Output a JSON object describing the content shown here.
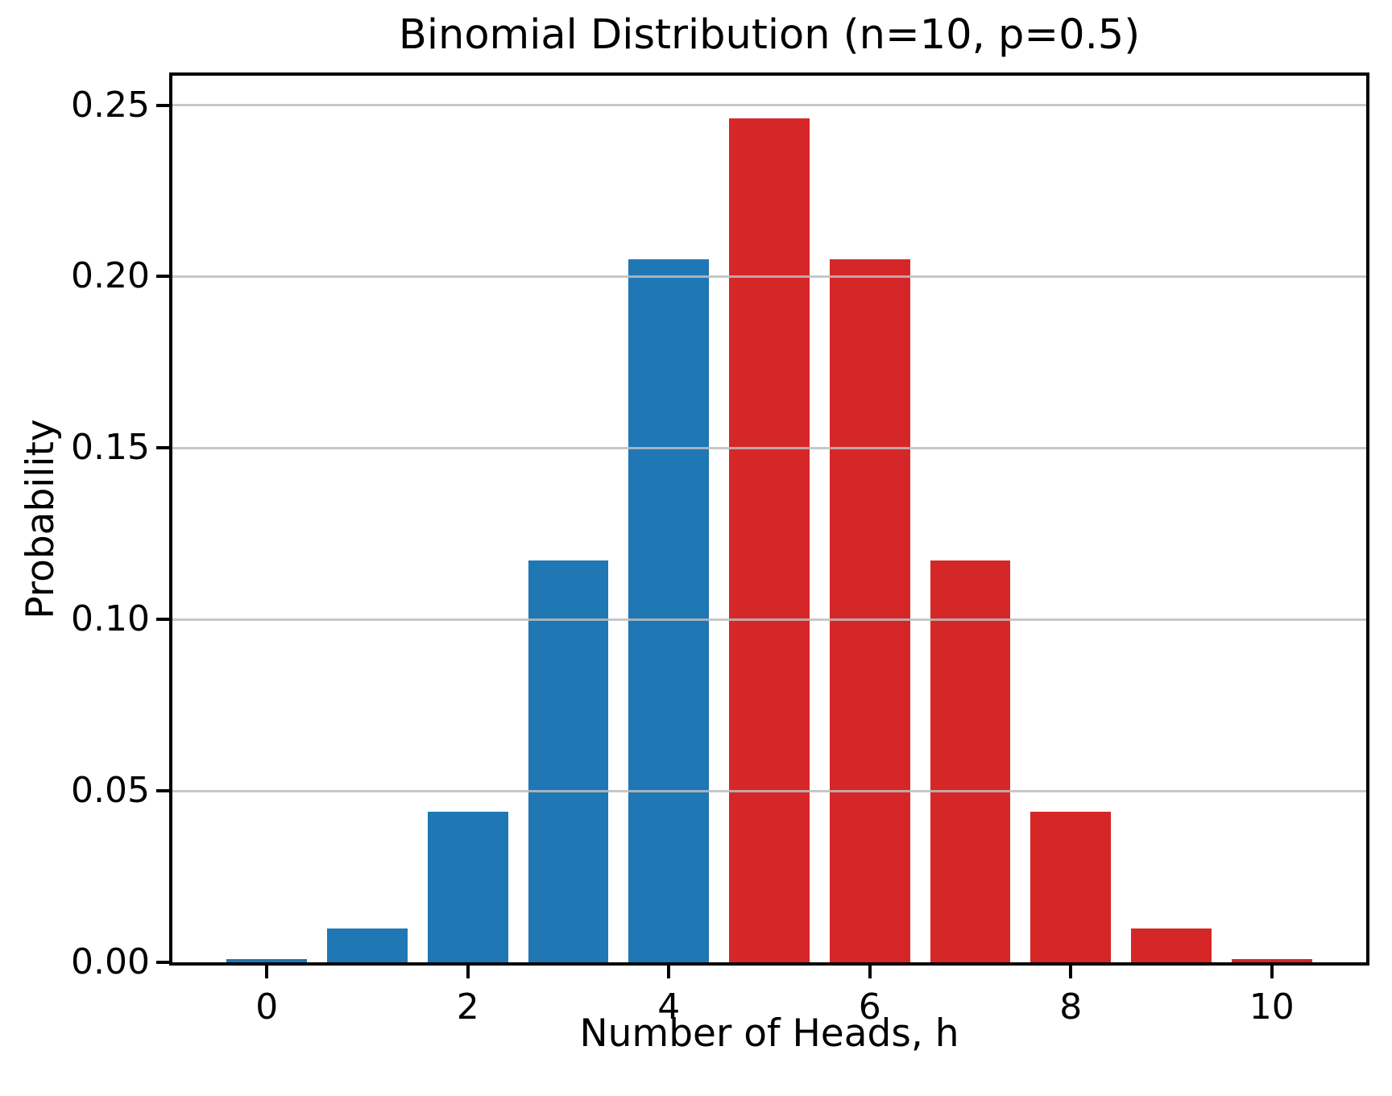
{
  "chart_data": {
    "type": "bar",
    "title": "Binomial Distribution (n=10, p=0.5)",
    "xlabel": "Number of Heads, h",
    "ylabel": "Probability",
    "categories": [
      0,
      1,
      2,
      3,
      4,
      5,
      6,
      7,
      8,
      9,
      10
    ],
    "values": [
      0.000977,
      0.009766,
      0.043945,
      0.117188,
      0.205078,
      0.246094,
      0.205078,
      0.117188,
      0.043945,
      0.009766,
      0.000977
    ],
    "bar_colors": [
      "#1f77b4",
      "#1f77b4",
      "#1f77b4",
      "#1f77b4",
      "#1f77b4",
      "#d62728",
      "#d62728",
      "#d62728",
      "#d62728",
      "#d62728",
      "#d62728"
    ],
    "bar_width": 0.8,
    "xlim": [
      -0.94,
      10.94
    ],
    "ylim": [
      0,
      0.2586
    ],
    "xticks": {
      "values": [
        0,
        2,
        4,
        6,
        8,
        10
      ],
      "labels": [
        "0",
        "2",
        "4",
        "6",
        "8",
        "10"
      ]
    },
    "yticks": {
      "values": [
        0,
        0.05,
        0.1,
        0.15,
        0.2,
        0.25
      ],
      "labels": [
        "0.00",
        "0.05",
        "0.10",
        "0.15",
        "0.20",
        "0.25"
      ]
    },
    "grid": {
      "show": true,
      "axis": "y",
      "over_bars": true
    },
    "colors": {
      "blue_bars": "#1f77b4",
      "red_bars": "#d62728",
      "gridline": "#bdbdbd",
      "spine": "#000000",
      "background": "#ffffff",
      "text": "#000000"
    },
    "legend": null
  }
}
